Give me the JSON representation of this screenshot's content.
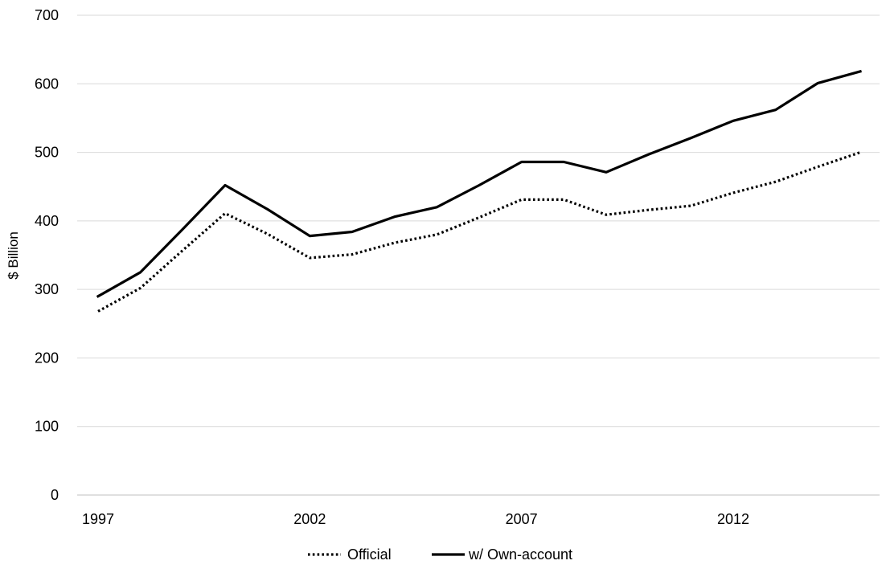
{
  "chart_data": {
    "type": "line",
    "title": "",
    "xlabel": "",
    "ylabel": "$ Billion",
    "x": [
      1997,
      1998,
      1999,
      2000,
      2001,
      2002,
      2003,
      2004,
      2005,
      2006,
      2007,
      2008,
      2009,
      2010,
      2011,
      2012,
      2013,
      2014,
      2015
    ],
    "xticks": [
      1997,
      2002,
      2007,
      2012
    ],
    "xlim": [
      1997,
      2015
    ],
    "ylim": [
      0,
      700
    ],
    "yticks": [
      0,
      100,
      200,
      300,
      400,
      500,
      600,
      700
    ],
    "grid": "horizontal",
    "legend_position": "bottom",
    "series": [
      {
        "name": "Official",
        "style": "dotted",
        "color": "#000000",
        "values": [
          268,
          302,
          357,
          411,
          381,
          346,
          351,
          368,
          380,
          405,
          431,
          431,
          409,
          416,
          422,
          441,
          457,
          479,
          500
        ]
      },
      {
        "name": "w/ Own-account",
        "style": "solid",
        "color": "#000000",
        "values": [
          290,
          325,
          388,
          452,
          417,
          378,
          384,
          406,
          420,
          452,
          486,
          486,
          471,
          497,
          521,
          546,
          562,
          601,
          618
        ]
      }
    ]
  }
}
